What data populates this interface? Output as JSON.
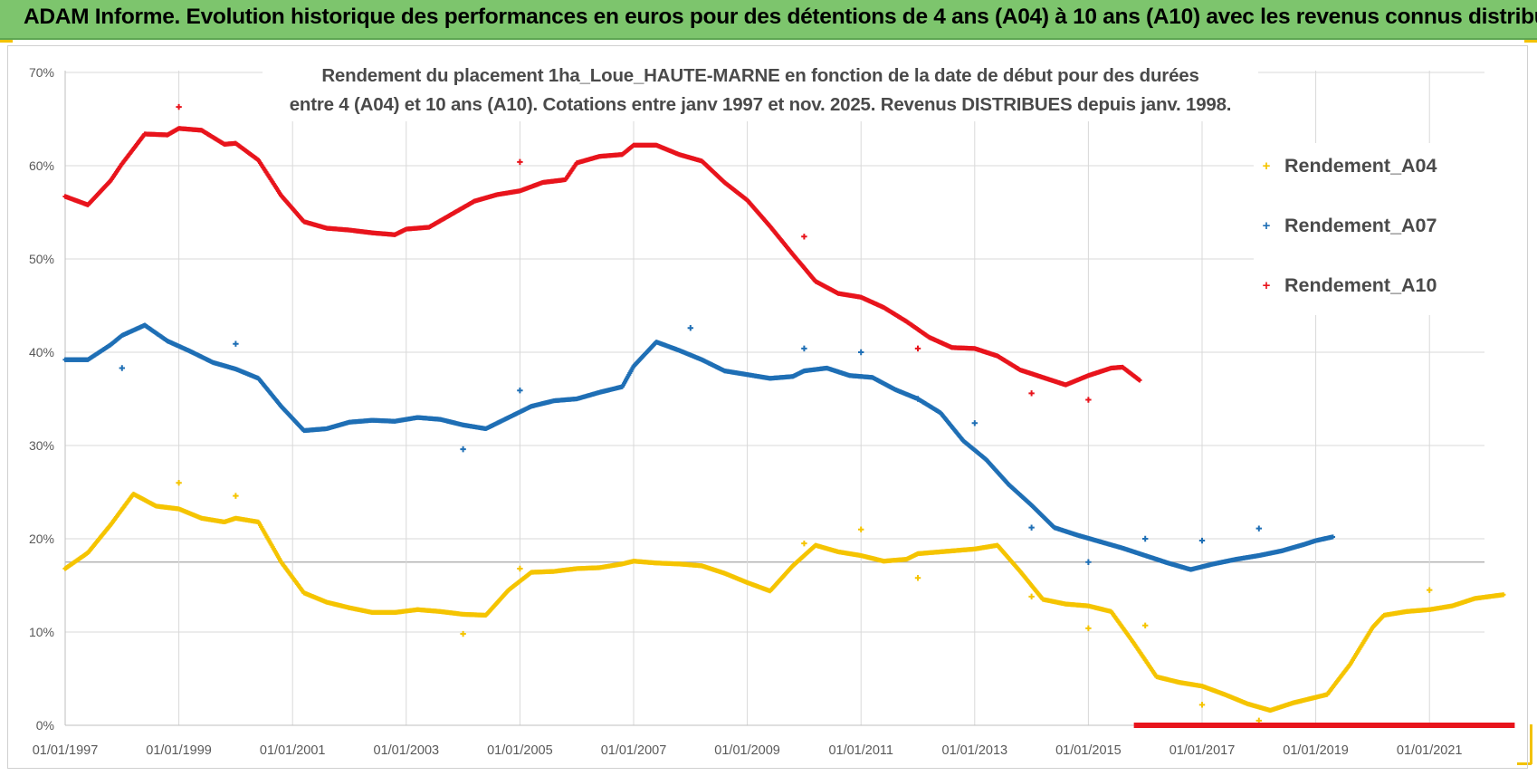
{
  "banner": {
    "title": "ADAM Informe. Evolution historique des performances en euros pour des détentions de 4 ans (A04) à 10 ans (A10) avec les revenus connus distribués"
  },
  "chart_data": {
    "type": "scatter",
    "title_line1": "Rendement du placement 1ha_Loue_HAUTE-MARNE en fonction de la date de début pour des durées",
    "title_line2": "entre 4 (A04) et 10 ans (A10).  Cotations entre janv 1997 et nov. 2025. Revenus DISTRIBUES depuis janv. 1998.",
    "xlabel": "",
    "ylabel": "",
    "x_range": [
      1997.0,
      2022.5
    ],
    "ylim": [
      0,
      70
    ],
    "y_ticks": [
      0,
      10,
      20,
      30,
      40,
      50,
      60,
      70
    ],
    "y_tick_labels": [
      "0%",
      "10%",
      "20%",
      "30%",
      "40%",
      "50%",
      "60%",
      "70%"
    ],
    "x_ticks": [
      1997,
      1999,
      2001,
      2003,
      2005,
      2007,
      2009,
      2011,
      2013,
      2015,
      2017,
      2019,
      2021
    ],
    "x_tick_labels": [
      "01/01/1997",
      "01/01/1999",
      "01/01/2001",
      "01/01/2003",
      "01/01/2005",
      "01/01/2007",
      "01/01/2009",
      "01/01/2011",
      "01/01/2013",
      "01/01/2015",
      "01/01/2017",
      "01/01/2019",
      "01/01/2021"
    ],
    "grid": true,
    "legend_position": "right",
    "series": [
      {
        "name": "Rendement_A04",
        "color": "#f5c400",
        "points": [
          [
            1997.0,
            16.8
          ],
          [
            1997.4,
            18.5
          ],
          [
            1997.8,
            21.5
          ],
          [
            1998.2,
            24.8
          ],
          [
            1998.6,
            23.5
          ],
          [
            1999.0,
            23.2
          ],
          [
            1999.4,
            22.2
          ],
          [
            1999.8,
            21.8
          ],
          [
            2000.0,
            22.2
          ],
          [
            2000.4,
            21.8
          ],
          [
            2000.8,
            17.5
          ],
          [
            2001.2,
            14.2
          ],
          [
            2001.6,
            13.2
          ],
          [
            2002.0,
            12.6
          ],
          [
            2002.4,
            12.1
          ],
          [
            2002.8,
            12.1
          ],
          [
            2003.2,
            12.4
          ],
          [
            2003.6,
            12.2
          ],
          [
            2004.0,
            11.9
          ],
          [
            2004.4,
            11.8
          ],
          [
            2004.8,
            14.5
          ],
          [
            2005.2,
            16.4
          ],
          [
            2005.6,
            16.5
          ],
          [
            2006.0,
            16.8
          ],
          [
            2006.4,
            16.9
          ],
          [
            2006.8,
            17.3
          ],
          [
            2007.0,
            17.6
          ],
          [
            2007.4,
            17.4
          ],
          [
            2007.8,
            17.3
          ],
          [
            2008.2,
            17.1
          ],
          [
            2008.6,
            16.3
          ],
          [
            2009.0,
            15.3
          ],
          [
            2009.4,
            14.4
          ],
          [
            2009.8,
            17.1
          ],
          [
            2010.2,
            19.3
          ],
          [
            2010.6,
            18.6
          ],
          [
            2011.0,
            18.2
          ],
          [
            2011.4,
            17.6
          ],
          [
            2011.8,
            17.8
          ],
          [
            2012.0,
            18.4
          ],
          [
            2012.4,
            18.6
          ],
          [
            2012.8,
            18.8
          ],
          [
            2013.0,
            18.9
          ],
          [
            2013.4,
            19.3
          ],
          [
            2013.8,
            16.5
          ],
          [
            2014.2,
            13.5
          ],
          [
            2014.6,
            13.0
          ],
          [
            2015.0,
            12.8
          ],
          [
            2015.4,
            12.2
          ],
          [
            2015.8,
            8.8
          ],
          [
            2016.2,
            5.2
          ],
          [
            2016.6,
            4.6
          ],
          [
            2017.0,
            4.2
          ],
          [
            2017.4,
            3.3
          ],
          [
            2017.8,
            2.3
          ],
          [
            2018.2,
            1.6
          ],
          [
            2018.6,
            2.4
          ],
          [
            2019.0,
            3.0
          ],
          [
            2019.2,
            3.3
          ],
          [
            2019.6,
            6.5
          ],
          [
            2020.0,
            10.5
          ],
          [
            2020.2,
            11.8
          ],
          [
            2020.6,
            12.2
          ],
          [
            2021.0,
            12.4
          ],
          [
            2021.4,
            12.8
          ],
          [
            2021.8,
            13.6
          ],
          [
            2022.3,
            14.0
          ]
        ],
        "outliers": [
          [
            1999.0,
            26.0
          ],
          [
            2000.0,
            24.6
          ],
          [
            2004.0,
            9.8
          ],
          [
            2005.0,
            16.8
          ],
          [
            2010.0,
            19.5
          ],
          [
            2011.0,
            21.0
          ],
          [
            2012.0,
            15.8
          ],
          [
            2014.0,
            13.8
          ],
          [
            2015.0,
            10.4
          ],
          [
            2016.0,
            10.7
          ],
          [
            2017.0,
            2.2
          ],
          [
            2018.0,
            0.5
          ],
          [
            2021.0,
            14.5
          ]
        ]
      },
      {
        "name": "Rendement_A07",
        "color": "#1f6fb5",
        "points": [
          [
            1997.0,
            39.2
          ],
          [
            1997.4,
            39.2
          ],
          [
            1997.8,
            40.8
          ],
          [
            1998.0,
            41.8
          ],
          [
            1998.4,
            42.9
          ],
          [
            1998.8,
            41.2
          ],
          [
            1999.2,
            40.1
          ],
          [
            1999.6,
            38.9
          ],
          [
            2000.0,
            38.2
          ],
          [
            2000.4,
            37.2
          ],
          [
            2000.8,
            34.2
          ],
          [
            2001.2,
            31.6
          ],
          [
            2001.6,
            31.8
          ],
          [
            2002.0,
            32.5
          ],
          [
            2002.4,
            32.7
          ],
          [
            2002.8,
            32.6
          ],
          [
            2003.2,
            33.0
          ],
          [
            2003.6,
            32.8
          ],
          [
            2004.0,
            32.2
          ],
          [
            2004.4,
            31.8
          ],
          [
            2004.8,
            33.0
          ],
          [
            2005.2,
            34.2
          ],
          [
            2005.6,
            34.8
          ],
          [
            2006.0,
            35.0
          ],
          [
            2006.4,
            35.7
          ],
          [
            2006.8,
            36.3
          ],
          [
            2007.0,
            38.5
          ],
          [
            2007.4,
            41.1
          ],
          [
            2007.8,
            40.2
          ],
          [
            2008.2,
            39.2
          ],
          [
            2008.6,
            38.0
          ],
          [
            2009.0,
            37.6
          ],
          [
            2009.4,
            37.2
          ],
          [
            2009.8,
            37.4
          ],
          [
            2010.0,
            38.0
          ],
          [
            2010.4,
            38.3
          ],
          [
            2010.8,
            37.5
          ],
          [
            2011.2,
            37.3
          ],
          [
            2011.6,
            36.0
          ],
          [
            2012.0,
            35.0
          ],
          [
            2012.4,
            33.5
          ],
          [
            2012.8,
            30.5
          ],
          [
            2013.2,
            28.5
          ],
          [
            2013.6,
            25.8
          ],
          [
            2014.0,
            23.6
          ],
          [
            2014.4,
            21.2
          ],
          [
            2014.8,
            20.4
          ],
          [
            2015.2,
            19.7
          ],
          [
            2015.6,
            19.0
          ],
          [
            2016.0,
            18.2
          ],
          [
            2016.4,
            17.4
          ],
          [
            2016.8,
            16.7
          ],
          [
            2017.2,
            17.3
          ],
          [
            2017.6,
            17.8
          ],
          [
            2018.0,
            18.2
          ],
          [
            2018.4,
            18.7
          ],
          [
            2018.8,
            19.4
          ],
          [
            2019.0,
            19.8
          ],
          [
            2019.3,
            20.2
          ]
        ],
        "outliers": [
          [
            1998.0,
            38.3
          ],
          [
            2000.0,
            40.9
          ],
          [
            2004.0,
            29.6
          ],
          [
            2005.0,
            35.9
          ],
          [
            2008.0,
            42.6
          ],
          [
            2010.0,
            40.4
          ],
          [
            2011.0,
            40.0
          ],
          [
            2012.0,
            35.0
          ],
          [
            2013.0,
            32.4
          ],
          [
            2014.0,
            21.2
          ],
          [
            2015.0,
            17.5
          ],
          [
            2016.0,
            20.0
          ],
          [
            2017.0,
            19.8
          ],
          [
            2018.0,
            21.1
          ]
        ]
      },
      {
        "name": "Rendement_A10",
        "color": "#e8141c",
        "points": [
          [
            1997.0,
            56.7
          ],
          [
            1997.4,
            55.8
          ],
          [
            1997.8,
            58.4
          ],
          [
            1998.0,
            60.2
          ],
          [
            1998.4,
            63.4
          ],
          [
            1998.8,
            63.3
          ],
          [
            1999.0,
            64.0
          ],
          [
            1999.4,
            63.8
          ],
          [
            1999.8,
            62.3
          ],
          [
            2000.0,
            62.4
          ],
          [
            2000.4,
            60.6
          ],
          [
            2000.8,
            56.8
          ],
          [
            2001.2,
            54.0
          ],
          [
            2001.6,
            53.3
          ],
          [
            2002.0,
            53.1
          ],
          [
            2002.4,
            52.8
          ],
          [
            2002.8,
            52.6
          ],
          [
            2003.0,
            53.2
          ],
          [
            2003.4,
            53.4
          ],
          [
            2003.8,
            54.8
          ],
          [
            2004.2,
            56.2
          ],
          [
            2004.6,
            56.9
          ],
          [
            2005.0,
            57.3
          ],
          [
            2005.4,
            58.2
          ],
          [
            2005.8,
            58.5
          ],
          [
            2006.0,
            60.3
          ],
          [
            2006.4,
            61.0
          ],
          [
            2006.8,
            61.2
          ],
          [
            2007.0,
            62.2
          ],
          [
            2007.4,
            62.2
          ],
          [
            2007.8,
            61.2
          ],
          [
            2008.2,
            60.5
          ],
          [
            2008.6,
            58.2
          ],
          [
            2009.0,
            56.3
          ],
          [
            2009.4,
            53.5
          ],
          [
            2009.8,
            50.5
          ],
          [
            2010.2,
            47.6
          ],
          [
            2010.6,
            46.3
          ],
          [
            2011.0,
            45.9
          ],
          [
            2011.4,
            44.8
          ],
          [
            2011.8,
            43.3
          ],
          [
            2012.2,
            41.6
          ],
          [
            2012.6,
            40.5
          ],
          [
            2013.0,
            40.4
          ],
          [
            2013.4,
            39.6
          ],
          [
            2013.8,
            38.1
          ],
          [
            2014.2,
            37.3
          ],
          [
            2014.6,
            36.5
          ],
          [
            2015.0,
            37.5
          ],
          [
            2015.4,
            38.3
          ],
          [
            2015.6,
            38.4
          ],
          [
            2015.9,
            37.0
          ]
        ],
        "outliers": [
          [
            1999.0,
            66.3
          ],
          [
            2005.0,
            60.4
          ],
          [
            2010.0,
            52.4
          ],
          [
            2012.0,
            40.4
          ],
          [
            2014.0,
            35.6
          ],
          [
            2015.0,
            34.9
          ]
        ],
        "zero_segment": {
          "x_start": 2015.8,
          "x_end": 2022.5,
          "value": 0
        }
      }
    ]
  }
}
